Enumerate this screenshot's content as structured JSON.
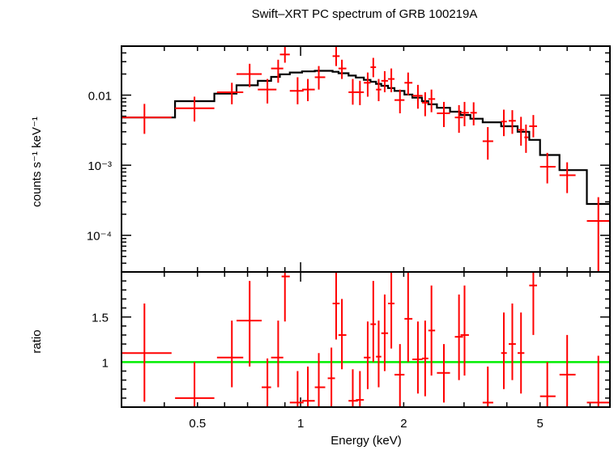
{
  "chart_data": [
    {
      "type": "scatter",
      "title": "Swift–XRT PC spectrum of GRB 100219A",
      "xlabel": "Energy (keV)",
      "ylabel": "counts s⁻¹ keV⁻¹",
      "xscale": "log",
      "yscale": "log",
      "xlim": [
        0.3,
        8.0
      ],
      "ylim": [
        3e-05,
        0.05
      ],
      "y_ticks": [
        {
          "value": 0.01,
          "label": "0.01"
        },
        {
          "value": 0.001,
          "label": "10⁻³"
        },
        {
          "value": 0.0001,
          "label": "10⁻⁴"
        }
      ],
      "series": [
        {
          "kind": "data",
          "color": "#ff0000",
          "points": [
            {
              "x": 0.35,
              "xlo": 0.3,
              "xhi": 0.42,
              "y": 0.0048,
              "ylo": 0.0028,
              "yhi": 0.0075
            },
            {
              "x": 0.49,
              "xlo": 0.43,
              "xhi": 0.56,
              "y": 0.0065,
              "ylo": 0.0042,
              "yhi": 0.0095
            },
            {
              "x": 0.63,
              "xlo": 0.57,
              "xhi": 0.68,
              "y": 0.011,
              "ylo": 0.0074,
              "yhi": 0.015
            },
            {
              "x": 0.71,
              "xlo": 0.65,
              "xhi": 0.77,
              "y": 0.02,
              "ylo": 0.013,
              "yhi": 0.028
            },
            {
              "x": 0.8,
              "xlo": 0.75,
              "xhi": 0.85,
              "y": 0.012,
              "ylo": 0.0076,
              "yhi": 0.017
            },
            {
              "x": 0.86,
              "xlo": 0.82,
              "xhi": 0.89,
              "y": 0.024,
              "ylo": 0.015,
              "yhi": 0.032
            },
            {
              "x": 0.9,
              "xlo": 0.87,
              "xhi": 0.93,
              "y": 0.038,
              "ylo": 0.029,
              "yhi": 0.05
            },
            {
              "x": 0.98,
              "xlo": 0.93,
              "xhi": 1.02,
              "y": 0.0115,
              "ylo": 0.0074,
              "yhi": 0.018
            },
            {
              "x": 1.05,
              "xlo": 1.01,
              "xhi": 1.1,
              "y": 0.012,
              "ylo": 0.0082,
              "yhi": 0.017
            },
            {
              "x": 1.13,
              "xlo": 1.1,
              "xhi": 1.18,
              "y": 0.018,
              "ylo": 0.012,
              "yhi": 0.026
            },
            {
              "x": 1.27,
              "xlo": 1.24,
              "xhi": 1.3,
              "y": 0.036,
              "ylo": 0.026,
              "yhi": 0.05
            },
            {
              "x": 1.32,
              "xlo": 1.29,
              "xhi": 1.36,
              "y": 0.024,
              "ylo": 0.017,
              "yhi": 0.032
            },
            {
              "x": 1.42,
              "xlo": 1.38,
              "xhi": 1.47,
              "y": 0.011,
              "ylo": 0.0073,
              "yhi": 0.017
            },
            {
              "x": 1.49,
              "xlo": 1.45,
              "xhi": 1.53,
              "y": 0.011,
              "ylo": 0.0072,
              "yhi": 0.016
            },
            {
              "x": 1.57,
              "xlo": 1.53,
              "xhi": 1.6,
              "y": 0.015,
              "ylo": 0.0095,
              "yhi": 0.021
            },
            {
              "x": 1.63,
              "xlo": 1.6,
              "xhi": 1.66,
              "y": 0.025,
              "ylo": 0.018,
              "yhi": 0.034
            },
            {
              "x": 1.69,
              "xlo": 1.66,
              "xhi": 1.72,
              "y": 0.012,
              "ylo": 0.0082,
              "yhi": 0.017
            },
            {
              "x": 1.76,
              "xlo": 1.72,
              "xhi": 1.8,
              "y": 0.016,
              "ylo": 0.011,
              "yhi": 0.022
            },
            {
              "x": 1.84,
              "xlo": 1.8,
              "xhi": 1.88,
              "y": 0.017,
              "ylo": 0.011,
              "yhi": 0.024
            },
            {
              "x": 1.95,
              "xlo": 1.88,
              "xhi": 2.01,
              "y": 0.0085,
              "ylo": 0.0055,
              "yhi": 0.012
            },
            {
              "x": 2.06,
              "xlo": 2.01,
              "xhi": 2.12,
              "y": 0.015,
              "ylo": 0.01,
              "yhi": 0.021
            },
            {
              "x": 2.2,
              "xlo": 2.12,
              "xhi": 2.27,
              "y": 0.0098,
              "ylo": 0.0064,
              "yhi": 0.014
            },
            {
              "x": 2.31,
              "xlo": 2.26,
              "xhi": 2.36,
              "y": 0.0078,
              "ylo": 0.005,
              "yhi": 0.011
            },
            {
              "x": 2.41,
              "xlo": 2.36,
              "xhi": 2.47,
              "y": 0.0088,
              "ylo": 0.0057,
              "yhi": 0.012
            },
            {
              "x": 2.62,
              "xlo": 2.5,
              "xhi": 2.73,
              "y": 0.0055,
              "ylo": 0.0035,
              "yhi": 0.008
            },
            {
              "x": 2.9,
              "xlo": 2.82,
              "xhi": 2.98,
              "y": 0.0048,
              "ylo": 0.0029,
              "yhi": 0.0072
            },
            {
              "x": 3.01,
              "xlo": 2.93,
              "xhi": 3.1,
              "y": 0.0056,
              "ylo": 0.0036,
              "yhi": 0.008
            },
            {
              "x": 3.2,
              "xlo": 3.13,
              "xhi": 3.27,
              "y": 0.0056,
              "ylo": 0.0037,
              "yhi": 0.0079
            },
            {
              "x": 3.52,
              "xlo": 3.4,
              "xhi": 3.65,
              "y": 0.0022,
              "ylo": 0.0012,
              "yhi": 0.0035
            },
            {
              "x": 3.92,
              "xlo": 3.85,
              "xhi": 4.0,
              "y": 0.0042,
              "ylo": 0.0026,
              "yhi": 0.0062
            },
            {
              "x": 4.15,
              "xlo": 4.05,
              "xhi": 4.25,
              "y": 0.0043,
              "ylo": 0.0028,
              "yhi": 0.0061
            },
            {
              "x": 4.4,
              "xlo": 4.3,
              "xhi": 4.5,
              "y": 0.0032,
              "ylo": 0.0019,
              "yhi": 0.0049
            },
            {
              "x": 4.55,
              "xlo": 4.5,
              "xhi": 4.62,
              "y": 0.0025,
              "ylo": 0.0015,
              "yhi": 0.0038
            },
            {
              "x": 4.78,
              "xlo": 4.65,
              "xhi": 4.9,
              "y": 0.0036,
              "ylo": 0.0025,
              "yhi": 0.0052
            },
            {
              "x": 5.25,
              "xlo": 5.0,
              "xhi": 5.55,
              "y": 0.00095,
              "ylo": 0.00055,
              "yhi": 0.0015
            },
            {
              "x": 6.0,
              "xlo": 5.7,
              "xhi": 6.35,
              "y": 0.00072,
              "ylo": 0.0004,
              "yhi": 0.0011
            },
            {
              "x": 7.4,
              "xlo": 6.85,
              "xhi": 8.0,
              "y": 0.00016,
              "ylo": 3e-05,
              "yhi": 0.00035
            }
          ]
        },
        {
          "kind": "model",
          "color": "#000000",
          "steps": [
            {
              "x0": 0.3,
              "x1": 0.43,
              "y": 0.0048
            },
            {
              "x0": 0.43,
              "x1": 0.56,
              "y": 0.0082
            },
            {
              "x0": 0.56,
              "x1": 0.65,
              "y": 0.0105
            },
            {
              "x0": 0.65,
              "x1": 0.75,
              "y": 0.0138
            },
            {
              "x0": 0.75,
              "x1": 0.82,
              "y": 0.016
            },
            {
              "x0": 0.82,
              "x1": 0.87,
              "y": 0.0182
            },
            {
              "x0": 0.87,
              "x1": 0.93,
              "y": 0.0198
            },
            {
              "x0": 0.93,
              "x1": 1.01,
              "y": 0.021
            },
            {
              "x0": 1.01,
              "x1": 1.1,
              "y": 0.0218
            },
            {
              "x0": 1.1,
              "x1": 1.24,
              "y": 0.0222
            },
            {
              "x0": 1.24,
              "x1": 1.29,
              "y": 0.0215
            },
            {
              "x0": 1.29,
              "x1": 1.38,
              "y": 0.0205
            },
            {
              "x0": 1.38,
              "x1": 1.45,
              "y": 0.019
            },
            {
              "x0": 1.45,
              "x1": 1.53,
              "y": 0.0178
            },
            {
              "x0": 1.53,
              "x1": 1.6,
              "y": 0.0165
            },
            {
              "x0": 1.6,
              "x1": 1.66,
              "y": 0.0155
            },
            {
              "x0": 1.66,
              "x1": 1.72,
              "y": 0.0145
            },
            {
              "x0": 1.72,
              "x1": 1.8,
              "y": 0.0136
            },
            {
              "x0": 1.8,
              "x1": 1.88,
              "y": 0.0126
            },
            {
              "x0": 1.88,
              "x1": 2.01,
              "y": 0.0115
            },
            {
              "x0": 2.01,
              "x1": 2.12,
              "y": 0.0102
            },
            {
              "x0": 2.12,
              "x1": 2.26,
              "y": 0.0092
            },
            {
              "x0": 2.26,
              "x1": 2.36,
              "y": 0.0082
            },
            {
              "x0": 2.36,
              "x1": 2.5,
              "y": 0.0074
            },
            {
              "x0": 2.5,
              "x1": 2.73,
              "y": 0.0066
            },
            {
              "x0": 2.73,
              "x1": 2.93,
              "y": 0.0058
            },
            {
              "x0": 2.93,
              "x1": 3.13,
              "y": 0.0052
            },
            {
              "x0": 3.13,
              "x1": 3.4,
              "y": 0.0046
            },
            {
              "x0": 3.4,
              "x1": 3.85,
              "y": 0.0041
            },
            {
              "x0": 3.85,
              "x1": 4.3,
              "y": 0.0036
            },
            {
              "x0": 4.3,
              "x1": 4.65,
              "y": 0.003
            },
            {
              "x0": 4.65,
              "x1": 5.0,
              "y": 0.0023
            },
            {
              "x0": 5.0,
              "x1": 5.7,
              "y": 0.0014
            },
            {
              "x0": 5.7,
              "x1": 6.85,
              "y": 0.00085
            },
            {
              "x0": 6.85,
              "x1": 8.0,
              "y": 0.00028
            }
          ]
        }
      ]
    },
    {
      "type": "scatter",
      "xlabel": "Energy (keV)",
      "ylabel": "ratio",
      "xscale": "log",
      "xlim": [
        0.3,
        8.0
      ],
      "ylim": [
        0.5,
        2.0
      ],
      "x_ticks": [
        {
          "value": 0.5,
          "label": "0.5"
        },
        {
          "value": 1,
          "label": "1"
        },
        {
          "value": 2,
          "label": "2"
        },
        {
          "value": 5,
          "label": "5"
        }
      ],
      "y_ticks": [
        {
          "value": 1,
          "label": "1"
        },
        {
          "value": 1.5,
          "label": "1.5"
        }
      ],
      "reference_line": {
        "y": 1,
        "color": "#00ee00"
      },
      "series": [
        {
          "kind": "data",
          "color": "#ff0000",
          "points": [
            {
              "x": 0.35,
              "xlo": 0.3,
              "xhi": 0.42,
              "y": 1.1,
              "ylo": 0.56,
              "yhi": 1.65
            },
            {
              "x": 0.49,
              "xlo": 0.43,
              "xhi": 0.56,
              "y": 0.6,
              "ylo": 0.5,
              "yhi": 1.0
            },
            {
              "x": 0.63,
              "xlo": 0.57,
              "xhi": 0.68,
              "y": 1.05,
              "ylo": 0.72,
              "yhi": 1.46
            },
            {
              "x": 0.71,
              "xlo": 0.65,
              "xhi": 0.77,
              "y": 1.46,
              "ylo": 0.95,
              "yhi": 1.9
            },
            {
              "x": 0.8,
              "xlo": 0.77,
              "xhi": 0.82,
              "y": 0.72,
              "ylo": 0.5,
              "yhi": 1.04
            },
            {
              "x": 0.86,
              "xlo": 0.82,
              "xhi": 0.89,
              "y": 1.05,
              "ylo": 0.72,
              "yhi": 1.46
            },
            {
              "x": 0.9,
              "xlo": 0.88,
              "xhi": 0.93,
              "y": 1.95,
              "ylo": 1.45,
              "yhi": 2.0
            },
            {
              "x": 0.98,
              "xlo": 0.93,
              "xhi": 1.02,
              "y": 0.55,
              "ylo": 0.5,
              "yhi": 0.9
            },
            {
              "x": 1.05,
              "xlo": 1.01,
              "xhi": 1.1,
              "y": 0.57,
              "ylo": 0.5,
              "yhi": 0.95
            },
            {
              "x": 1.13,
              "xlo": 1.1,
              "xhi": 1.18,
              "y": 0.72,
              "ylo": 0.5,
              "yhi": 1.1
            },
            {
              "x": 1.23,
              "xlo": 1.2,
              "xhi": 1.26,
              "y": 0.82,
              "ylo": 0.5,
              "yhi": 1.16
            },
            {
              "x": 1.27,
              "xlo": 1.24,
              "xhi": 1.3,
              "y": 1.65,
              "ylo": 1.25,
              "yhi": 2.0
            },
            {
              "x": 1.32,
              "xlo": 1.29,
              "xhi": 1.36,
              "y": 1.3,
              "ylo": 0.92,
              "yhi": 1.7
            },
            {
              "x": 1.42,
              "xlo": 1.38,
              "xhi": 1.47,
              "y": 0.57,
              "ylo": 0.5,
              "yhi": 0.92
            },
            {
              "x": 1.49,
              "xlo": 1.45,
              "xhi": 1.53,
              "y": 0.58,
              "ylo": 0.5,
              "yhi": 0.9
            },
            {
              "x": 1.57,
              "xlo": 1.53,
              "xhi": 1.6,
              "y": 1.05,
              "ylo": 0.7,
              "yhi": 1.45
            },
            {
              "x": 1.63,
              "xlo": 1.6,
              "xhi": 1.66,
              "y": 1.42,
              "ylo": 1.0,
              "yhi": 1.9
            },
            {
              "x": 1.69,
              "xlo": 1.66,
              "xhi": 1.72,
              "y": 1.06,
              "ylo": 0.72,
              "yhi": 1.46
            },
            {
              "x": 1.76,
              "xlo": 1.72,
              "xhi": 1.8,
              "y": 1.32,
              "ylo": 0.9,
              "yhi": 1.75
            },
            {
              "x": 1.84,
              "xlo": 1.8,
              "xhi": 1.88,
              "y": 1.65,
              "ylo": 1.15,
              "yhi": 2.0
            },
            {
              "x": 1.95,
              "xlo": 1.88,
              "xhi": 2.01,
              "y": 0.86,
              "ylo": 0.5,
              "yhi": 1.2
            },
            {
              "x": 2.06,
              "xlo": 2.01,
              "xhi": 2.12,
              "y": 1.48,
              "ylo": 1.0,
              "yhi": 2.0
            },
            {
              "x": 2.2,
              "xlo": 2.12,
              "xhi": 2.27,
              "y": 1.03,
              "ylo": 0.65,
              "yhi": 1.45
            },
            {
              "x": 2.31,
              "xlo": 2.26,
              "xhi": 2.36,
              "y": 1.04,
              "ylo": 0.62,
              "yhi": 1.46
            },
            {
              "x": 2.41,
              "xlo": 2.36,
              "xhi": 2.47,
              "y": 1.35,
              "ylo": 0.85,
              "yhi": 1.85
            },
            {
              "x": 2.62,
              "xlo": 2.5,
              "xhi": 2.73,
              "y": 0.88,
              "ylo": 0.55,
              "yhi": 1.2
            },
            {
              "x": 2.9,
              "xlo": 2.82,
              "xhi": 2.98,
              "y": 1.28,
              "ylo": 0.8,
              "yhi": 1.75
            },
            {
              "x": 3.01,
              "xlo": 2.93,
              "xhi": 3.1,
              "y": 1.3,
              "ylo": 0.85,
              "yhi": 1.85
            },
            {
              "x": 3.52,
              "xlo": 3.4,
              "xhi": 3.65,
              "y": 0.55,
              "ylo": 0.5,
              "yhi": 0.95
            },
            {
              "x": 3.92,
              "xlo": 3.85,
              "xhi": 4.0,
              "y": 1.1,
              "ylo": 0.7,
              "yhi": 1.55
            },
            {
              "x": 4.15,
              "xlo": 4.05,
              "xhi": 4.25,
              "y": 1.2,
              "ylo": 0.8,
              "yhi": 1.65
            },
            {
              "x": 4.4,
              "xlo": 4.3,
              "xhi": 4.5,
              "y": 1.1,
              "ylo": 0.65,
              "yhi": 1.55
            },
            {
              "x": 4.78,
              "xlo": 4.65,
              "xhi": 4.9,
              "y": 1.85,
              "ylo": 1.3,
              "yhi": 2.0
            },
            {
              "x": 5.25,
              "xlo": 5.0,
              "xhi": 5.55,
              "y": 0.62,
              "ylo": 0.5,
              "yhi": 1.0
            },
            {
              "x": 6.0,
              "xlo": 5.7,
              "xhi": 6.35,
              "y": 0.86,
              "ylo": 0.5,
              "yhi": 1.3
            },
            {
              "x": 7.4,
              "xlo": 6.85,
              "xhi": 8.0,
              "y": 0.55,
              "ylo": 0.5,
              "yhi": 1.07
            }
          ]
        }
      ]
    }
  ]
}
